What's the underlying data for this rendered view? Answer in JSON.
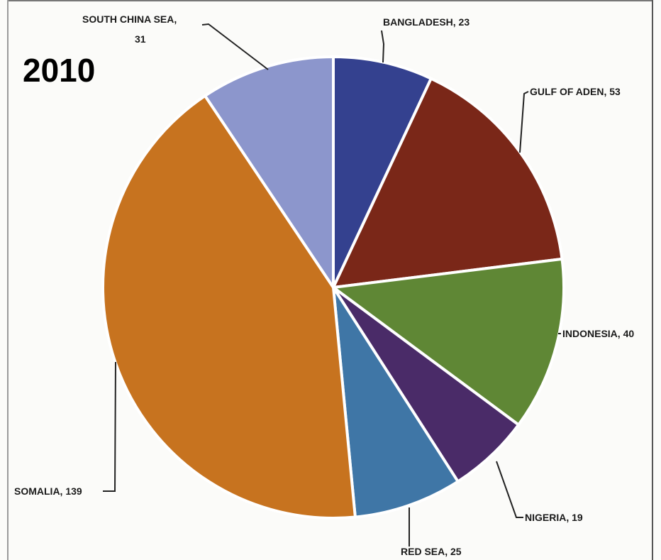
{
  "chart_data": {
    "type": "pie",
    "title": "2010",
    "slices": [
      {
        "label": "BANGLADESH, 23",
        "name": "BANGLADESH",
        "value": 23,
        "color": "#34418f"
      },
      {
        "label": "GULF OF ADEN, 53",
        "name": "GULF OF ADEN",
        "value": 53,
        "color": "#7a2718"
      },
      {
        "label": "INDONESIA, 40",
        "name": "INDONESIA",
        "value": 40,
        "color": "#5f8735"
      },
      {
        "label": "NIGERIA, 19",
        "name": "NIGERIA",
        "value": 19,
        "color": "#4a2b68"
      },
      {
        "label": "RED SEA, 25",
        "name": "RED SEA",
        "value": 25,
        "color": "#3f76a6"
      },
      {
        "label": "SOMALIA, 139",
        "name": "SOMALIA",
        "value": 139,
        "color": "#c7731f"
      },
      {
        "label": "SOUTH CHINA SEA,",
        "label2": "31",
        "name": "SOUTH CHINA SEA",
        "value": 31,
        "color": "#8c96cc"
      }
    ]
  }
}
